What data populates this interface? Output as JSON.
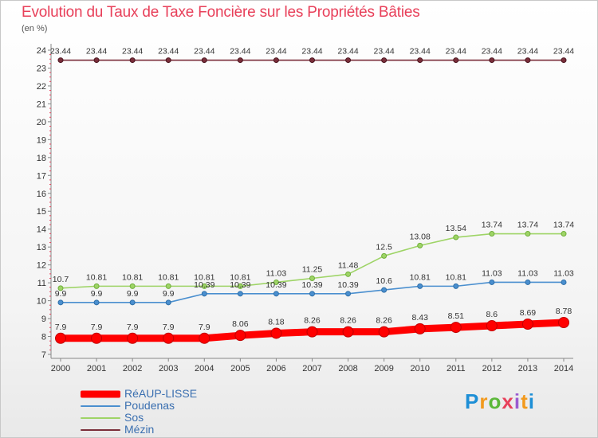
{
  "header": {
    "title": "Evolution du Taux de Taxe Foncière sur les Propriétés Bâties",
    "subtitle": "(en %)"
  },
  "chart_data": {
    "type": "line",
    "title": "Evolution du Taux de Taxe Foncière sur les Propriétés Bâties",
    "xlabel": "",
    "ylabel": "(en %)",
    "categories": [
      "2000",
      "2001",
      "2002",
      "2003",
      "2004",
      "2005",
      "2006",
      "2007",
      "2008",
      "2009",
      "2010",
      "2011",
      "2012",
      "2013",
      "2014"
    ],
    "ylim": [
      7,
      24
    ],
    "yticks": [
      7,
      8,
      9,
      10,
      11,
      12,
      13,
      14,
      15,
      16,
      17,
      18,
      19,
      20,
      21,
      22,
      23,
      24
    ],
    "grid": false,
    "legend_position": "bottom-left",
    "series": [
      {
        "name": "RéAUP-LISSE",
        "color": "#ff0000",
        "values": [
          7.9,
          7.9,
          7.9,
          7.9,
          7.9,
          8.06,
          8.18,
          8.26,
          8.26,
          8.26,
          8.43,
          8.51,
          8.6,
          8.69,
          8.78
        ],
        "labels": [
          "7.9",
          "7.9",
          "7.9",
          "7.9",
          "7.9",
          "8.06",
          "8.18",
          "8.26",
          "8.26",
          "8.26",
          "8.43",
          "8.51",
          "8.6",
          "8.69",
          "8.78"
        ]
      },
      {
        "name": "Poudenas",
        "color": "#4a8fcf",
        "values": [
          9.9,
          9.9,
          9.9,
          9.9,
          10.39,
          10.39,
          10.39,
          10.39,
          10.39,
          10.6,
          10.81,
          10.81,
          11.03,
          11.03,
          11.03
        ],
        "labels": [
          "9.9",
          "9.9",
          "9.9",
          "9.9",
          "10.39",
          "10.39",
          "10.39",
          "10.39",
          "10.39",
          "10.6",
          "10.81",
          "10.81",
          "11.03",
          "11.03",
          "11.03"
        ]
      },
      {
        "name": "Sos",
        "color": "#9ed466",
        "values": [
          10.7,
          10.81,
          10.81,
          10.81,
          10.81,
          10.81,
          11.03,
          11.25,
          11.48,
          12.5,
          13.08,
          13.54,
          13.74,
          13.74,
          13.74
        ],
        "labels": [
          "10.7",
          "10.81",
          "10.81",
          "10.81",
          "10.81",
          "10.81",
          "11.03",
          "11.25",
          "11.48",
          "12.5",
          "13.08",
          "13.54",
          "13.74",
          "13.74",
          "13.74"
        ]
      },
      {
        "name": "Mézin",
        "color": "#7a2e3a",
        "values": [
          23.44,
          23.44,
          23.44,
          23.44,
          23.44,
          23.44,
          23.44,
          23.44,
          23.44,
          23.44,
          23.44,
          23.44,
          23.44,
          23.44,
          23.44
        ],
        "labels": [
          "23.44",
          "23.44",
          "23.44",
          "23.44",
          "23.44",
          "23.44",
          "23.44",
          "23.44",
          "23.44",
          "23.44",
          "23.44",
          "23.44",
          "23.44",
          "23.44",
          "23.44"
        ]
      }
    ]
  },
  "branding": {
    "logo_letters": [
      "P",
      "r",
      "o",
      "x",
      "i",
      "t",
      "i"
    ],
    "logo_colors": [
      "#1e8fd6",
      "#f29a1e",
      "#5cb83a",
      "#e8405a",
      "#9a5ad0",
      "#f29a1e",
      "#1e8fd6"
    ]
  }
}
